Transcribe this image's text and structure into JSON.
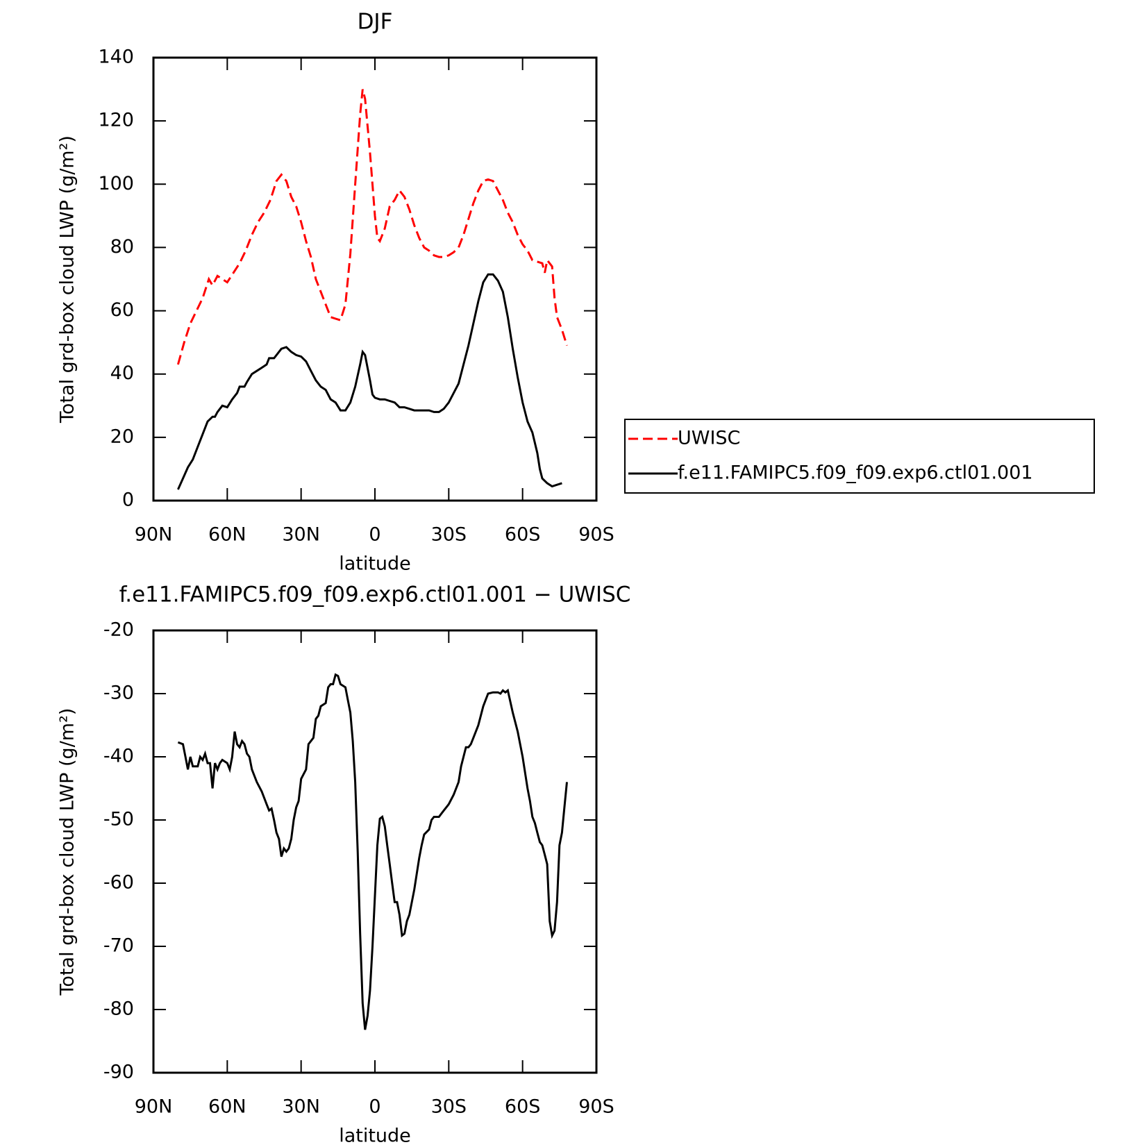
{
  "chart_data": [
    {
      "type": "line",
      "title": "DJF",
      "xlabel": "latitude",
      "ylabel": "Total grd-box cloud LWP (g/m²)",
      "xlim": [
        90,
        -90
      ],
      "ylim": [
        0,
        140
      ],
      "xticks": [
        {
          "value": 90,
          "label": "90N"
        },
        {
          "value": 60,
          "label": "60N"
        },
        {
          "value": 30,
          "label": "30N"
        },
        0,
        {
          "value": -30,
          "label": "30S"
        },
        {
          "value": -60,
          "label": "60S"
        },
        {
          "value": -90,
          "label": "90S"
        }
      ],
      "yticks": [
        0,
        20,
        40,
        60,
        80,
        100,
        120,
        140
      ],
      "legend": "outside right",
      "series": [
        {
          "name": "UWISC",
          "color": "#ff0000",
          "dash": true,
          "x": [
            80,
            77.5,
            75,
            72.5,
            70,
            67.5,
            66,
            64,
            62,
            60,
            57.5,
            55,
            52.5,
            50,
            47.5,
            45,
            42.5,
            40,
            38,
            36,
            34,
            32,
            30,
            28,
            26,
            24,
            22,
            20,
            18,
            16,
            14,
            12,
            10,
            8,
            6,
            5,
            4,
            2,
            0,
            -1,
            -2,
            -4,
            -6,
            -8,
            -10,
            -12,
            -14,
            -16,
            -18,
            -20,
            -22,
            -24,
            -26,
            -28,
            -30,
            -32,
            -34,
            -36,
            -38,
            -40,
            -42,
            -44,
            -46,
            -48,
            -50,
            -52,
            -54,
            -56,
            -58,
            -60,
            -62,
            -64,
            -66,
            -68,
            -69,
            -70,
            -72,
            -73,
            -74,
            -76,
            -78
          ],
          "values": [
            43,
            50,
            56,
            60,
            64,
            70,
            68,
            71,
            70,
            69,
            72,
            75,
            79,
            84,
            88,
            91,
            95,
            101,
            103,
            101,
            96,
            93,
            88,
            82,
            77,
            70,
            66,
            62,
            58,
            57.5,
            57,
            62,
            78,
            100,
            122,
            130,
            127,
            110,
            90,
            83,
            82,
            86,
            93,
            95,
            98,
            96,
            92,
            87,
            83,
            80,
            79,
            77.5,
            77,
            77,
            77.5,
            78.5,
            80,
            84,
            89,
            94,
            98,
            101,
            101.5,
            101,
            98,
            95,
            91,
            88,
            84,
            81,
            79,
            76,
            75.5,
            75,
            72,
            76,
            74,
            64,
            58,
            54,
            49
          ]
        },
        {
          "name": "f.e11.FAMIPC5.f09_f09.exp6.ctl01.001",
          "color": "#000000",
          "dash": false,
          "x": [
            80,
            78,
            76,
            74,
            72,
            70,
            68,
            66,
            65,
            64,
            62,
            60,
            58,
            56,
            55,
            53,
            52,
            50,
            48,
            46,
            44,
            43,
            41,
            40,
            38,
            36,
            34,
            32,
            30,
            28,
            26,
            24,
            22,
            20,
            18,
            16,
            14,
            12,
            10,
            8,
            6,
            5,
            4,
            2,
            1,
            0,
            -2,
            -4,
            -6,
            -8,
            -10,
            -12,
            -14,
            -16,
            -18,
            -20,
            -22,
            -24,
            -26,
            -28,
            -30,
            -32,
            -34,
            -36,
            -38,
            -40,
            -42,
            -44,
            -46,
            -48,
            -50,
            -52,
            -54,
            -56,
            -58,
            -60,
            -62,
            -64,
            -66,
            -67,
            -68,
            -70,
            -72,
            -74,
            -76
          ],
          "values": [
            3.5,
            7,
            10.5,
            13,
            17,
            21,
            25,
            26.5,
            26.5,
            28,
            30,
            29.5,
            32,
            34,
            36,
            36,
            37.5,
            40,
            41,
            42,
            43,
            45,
            45,
            46,
            48,
            48.5,
            47,
            46,
            45.5,
            44,
            41,
            38,
            36,
            35,
            32,
            31,
            28.5,
            28.5,
            31,
            36,
            43,
            47,
            46,
            38,
            33.5,
            32.5,
            32,
            32,
            31.5,
            31,
            29.5,
            29.5,
            29,
            28.5,
            28.5,
            28.5,
            28.5,
            28,
            28,
            29,
            31,
            34,
            37,
            43,
            49,
            56,
            63,
            69,
            71.5,
            71.5,
            69.5,
            66,
            58,
            48,
            39,
            31,
            25,
            21.5,
            15,
            10,
            7,
            5.5,
            4.5,
            5,
            5.5
          ]
        }
      ]
    },
    {
      "type": "line",
      "title": "f.e11.FAMIPC5.f09_f09.exp6.ctl01.001 − UWISC",
      "xlabel": "latitude",
      "ylabel": "Total grd-box cloud LWP (g/m²)",
      "xlim": [
        90,
        -90
      ],
      "ylim": [
        -90,
        -20
      ],
      "xticks": [
        {
          "value": 90,
          "label": "90N"
        },
        {
          "value": 60,
          "label": "60N"
        },
        {
          "value": 30,
          "label": "30N"
        },
        0,
        {
          "value": -30,
          "label": "30S"
        },
        {
          "value": -60,
          "label": "60S"
        },
        {
          "value": -90,
          "label": "90S"
        }
      ],
      "yticks": [
        -90,
        -80,
        -70,
        -60,
        -50,
        -40,
        -30,
        -20
      ],
      "series": [
        {
          "color": "#000000",
          "dash": false,
          "x": [
            80,
            78,
            77,
            76,
            75,
            74,
            72,
            71,
            70,
            69,
            68,
            67,
            66,
            65,
            64,
            63,
            62,
            60,
            59,
            58,
            57,
            56,
            55,
            54,
            53,
            52,
            51,
            50,
            48,
            46,
            44,
            43,
            42,
            41,
            40,
            39,
            38,
            37,
            36,
            35,
            34,
            33,
            32,
            31,
            30,
            28,
            27,
            26,
            25,
            24,
            23,
            22,
            20,
            19,
            18,
            17,
            16,
            15,
            14,
            12,
            11,
            10,
            9,
            8,
            7,
            6,
            5,
            4,
            3,
            2,
            1,
            0,
            -1,
            -2,
            -3,
            -4,
            -5,
            -6,
            -7,
            -8,
            -9,
            -10,
            -11,
            -12,
            -13,
            -14,
            -16,
            -18,
            -19,
            -20,
            -22,
            -23,
            -24,
            -26,
            -28,
            -29,
            -30,
            -32,
            -34,
            -35,
            -36,
            -37,
            -38,
            -39,
            -40,
            -42,
            -44,
            -45,
            -46,
            -48,
            -50,
            -51,
            -52,
            -53,
            -54,
            -56,
            -58,
            -60,
            -62,
            -63,
            -64,
            -65,
            -66,
            -67,
            -68,
            -69,
            -70,
            -71,
            -72,
            -73,
            -74,
            -75,
            -76,
            -77,
            -78
          ],
          "values": [
            -37.7,
            -38,
            -40,
            -42,
            -40,
            -41.5,
            -41.5,
            -40,
            -40.5,
            -39.5,
            -41,
            -41,
            -45,
            -41,
            -42,
            -41,
            -40.5,
            -41,
            -42,
            -40,
            -36,
            -38,
            -38.5,
            -37.5,
            -38,
            -39.5,
            -40,
            -42,
            -44,
            -45.5,
            -47.5,
            -48.5,
            -48.2,
            -50,
            -52,
            -53,
            -55.8,
            -54.5,
            -55,
            -54.5,
            -53,
            -50,
            -48,
            -47,
            -43.5,
            -42,
            -38,
            -37.5,
            -37,
            -34,
            -33.5,
            -32,
            -31.5,
            -29,
            -28.5,
            -28.5,
            -27,
            -27.2,
            -28.5,
            -29,
            -31,
            -33,
            -37.5,
            -44,
            -55,
            -68,
            -79,
            -83.2,
            -81,
            -77,
            -70,
            -62,
            -54,
            -49.8,
            -49.5,
            -51,
            -54,
            -57,
            -60,
            -63,
            -63,
            -65,
            -68.3,
            -68,
            -66,
            -65,
            -61,
            -56,
            -54,
            -52.3,
            -51.5,
            -50,
            -49.5,
            -49.5,
            -48.5,
            -48,
            -47.5,
            -46,
            -44,
            -41.5,
            -40,
            -38.5,
            -38.5,
            -38,
            -37,
            -35,
            -32,
            -31,
            -30,
            -29.8,
            -29.8,
            -30,
            -29.5,
            -29.8,
            -29.5,
            -33,
            -36,
            -40,
            -45,
            -47,
            -49.5,
            -50.5,
            -52,
            -53.5,
            -54,
            -55.5,
            -57,
            -66,
            -68.3,
            -67.5,
            -63,
            -54,
            -52,
            -48,
            -44
          ]
        }
      ]
    }
  ]
}
